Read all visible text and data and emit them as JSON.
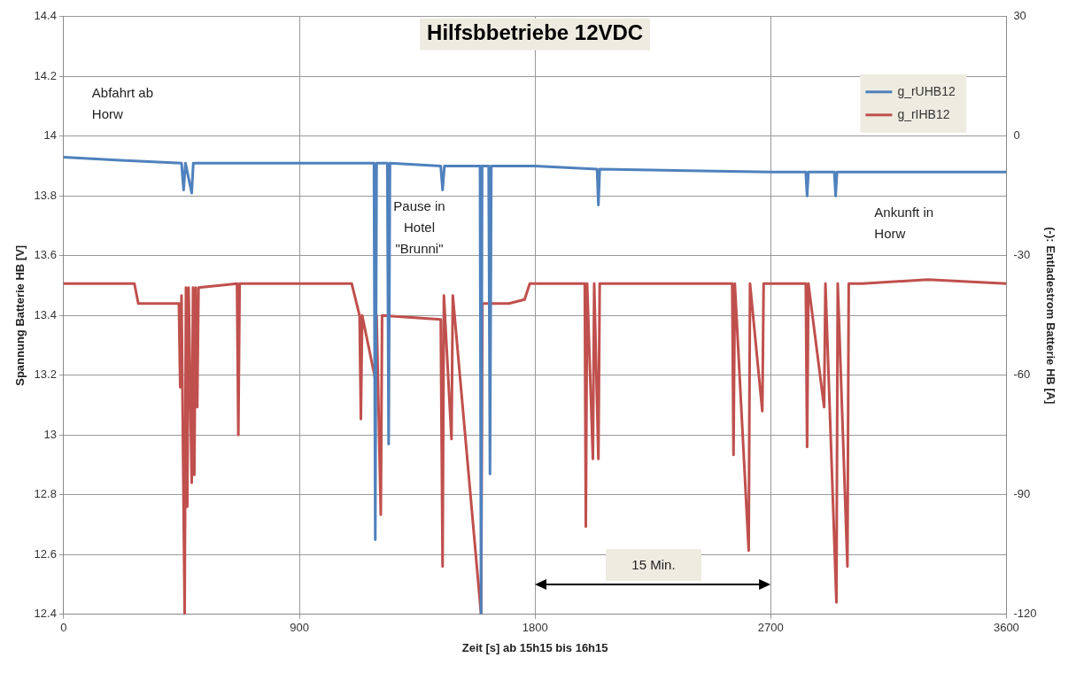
{
  "chart_data": {
    "type": "line",
    "title": "Hilfsbbetriebe 12VDC",
    "xlabel": "Zeit [s] ab 15h15 bis 16h15",
    "ylabel": "Spannung Batterie HB [V]",
    "y2label": "(-): Entladestrom Batterie HB [A]",
    "xlim": [
      0,
      3600
    ],
    "xticks": [
      0,
      900,
      1800,
      2700,
      3600
    ],
    "ylim": [
      12.4,
      14.4
    ],
    "yticks": [
      12.4,
      12.6,
      12.8,
      13,
      13.2,
      13.4,
      13.6,
      13.8,
      14,
      14.2,
      14.4
    ],
    "y2lim": [
      -120,
      30
    ],
    "y2ticks": [
      -120,
      -90,
      -60,
      -30,
      0,
      30
    ],
    "grid": true,
    "legend": "top right",
    "marker": "none",
    "line_style": "solid",
    "series": [
      {
        "name": "g_rUHB12",
        "color": "#4f81bd",
        "x": [
          0,
          200,
          450,
          458,
          465,
          489,
          495,
          900,
          1185,
          1190,
          1195,
          1236,
          1241,
          1246,
          1440,
          1447,
          1454,
          1590,
          1594,
          1598,
          1623,
          1628,
          1633,
          1800,
          2037,
          2042,
          2047,
          2700,
          2834,
          2839,
          2844,
          2943,
          2948,
          2953,
          3600
        ],
        "values": [
          13.93,
          13.92,
          13.91,
          13.82,
          13.91,
          13.81,
          13.91,
          13.91,
          13.91,
          12.65,
          13.91,
          13.91,
          12.97,
          13.91,
          13.9,
          13.82,
          13.9,
          13.9,
          12.4,
          13.9,
          13.9,
          12.87,
          13.9,
          13.9,
          13.89,
          13.77,
          13.89,
          13.88,
          13.88,
          13.8,
          13.88,
          13.88,
          13.8,
          13.88,
          13.88
        ]
      },
      {
        "name": "g_rIHB12",
        "color": "#c0504d",
        "axis": "y2",
        "x": [
          0,
          270,
          285,
          440,
          445,
          450,
          462,
          467,
          472,
          477,
          489,
          494,
          499,
          504,
          510,
          515,
          662,
          667,
          672,
          1100,
          1130,
          1135,
          1140,
          1190,
          1195,
          1211,
          1216,
          1440,
          1447,
          1452,
          1481,
          1486,
          1594,
          1599,
          1700,
          1760,
          1780,
          1990,
          1994,
          1999,
          2021,
          2026,
          2042,
          2047,
          2553,
          2558,
          2563,
          2616,
          2621,
          2668,
          2673,
          2834,
          2839,
          2844,
          2904,
          2909,
          2951,
          2956,
          2993,
          2998,
          3050,
          3300,
          3600
        ],
        "values": [
          -37,
          -37,
          -42,
          -42,
          -63,
          -40,
          -120,
          -38,
          -93,
          -38,
          -87,
          -38,
          -85,
          -38,
          -68,
          -38,
          -37,
          -75,
          -37,
          -37,
          -45,
          -71,
          -45,
          -61,
          -45,
          -95,
          -45,
          -46,
          -108,
          -40,
          -76,
          -40,
          -120,
          -42,
          -42,
          -41,
          -37,
          -37,
          -98,
          -37,
          -81,
          -37,
          -81,
          -37,
          -37,
          -80,
          -37,
          -104,
          -37,
          -69,
          -37,
          -37,
          -78,
          -37,
          -68,
          -37,
          -117,
          -37,
          -108,
          -37,
          -37,
          -36,
          -37
        ]
      }
    ],
    "annotations": [
      "Abfahrt ab Horw",
      "Pause in Hotel \"Brunni\"",
      "Ankunft in Horw",
      "15 Min."
    ]
  }
}
